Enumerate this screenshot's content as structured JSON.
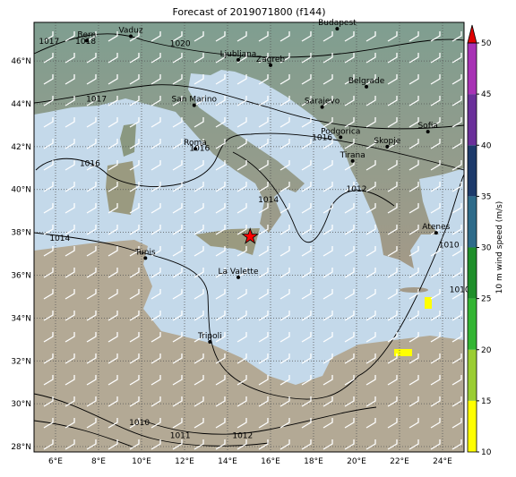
{
  "title": "Forecast of 2019071800 (f144)",
  "map": {
    "lonlim": [
      5,
      25
    ],
    "latlim": [
      27.75,
      47.8
    ],
    "xticks": [
      {
        "value": 6,
        "label": "6°E"
      },
      {
        "value": 8,
        "label": "8°E"
      },
      {
        "value": 10,
        "label": "10°E"
      },
      {
        "value": 12,
        "label": "12°E"
      },
      {
        "value": 14,
        "label": "14°E"
      },
      {
        "value": 16,
        "label": "16°E"
      },
      {
        "value": 18,
        "label": "18°E"
      },
      {
        "value": 20,
        "label": "20°E"
      },
      {
        "value": 22,
        "label": "22°E"
      },
      {
        "value": 24,
        "label": "24°E"
      }
    ],
    "yticks": [
      {
        "value": 28,
        "label": "28°N"
      },
      {
        "value": 30,
        "label": "30°N"
      },
      {
        "value": 32,
        "label": "32°N"
      },
      {
        "value": 34,
        "label": "34°N"
      },
      {
        "value": 36,
        "label": "36°N"
      },
      {
        "value": 38,
        "label": "38°N"
      },
      {
        "value": 40,
        "label": "40°N"
      },
      {
        "value": 42,
        "label": "42°N"
      },
      {
        "value": 44,
        "label": "44°N"
      },
      {
        "value": 46,
        "label": "46°N"
      }
    ],
    "grid": true,
    "cities": [
      {
        "name": "Bern",
        "lon": 7.45,
        "lat": 46.95
      },
      {
        "name": "Vaduz",
        "lon": 9.5,
        "lat": 47.15
      },
      {
        "name": "Budapest",
        "lon": 19.1,
        "lat": 47.5
      },
      {
        "name": "Ljubljana",
        "lon": 14.5,
        "lat": 46.05
      },
      {
        "name": "Zagreb",
        "lon": 16.0,
        "lat": 45.8
      },
      {
        "name": "Belgrade",
        "lon": 20.46,
        "lat": 44.8
      },
      {
        "name": "San Marino",
        "lon": 12.45,
        "lat": 43.93
      },
      {
        "name": "Sarajevo",
        "lon": 18.4,
        "lat": 43.85
      },
      {
        "name": "Roma",
        "lon": 12.5,
        "lat": 41.9
      },
      {
        "name": "Podgorica",
        "lon": 19.26,
        "lat": 42.44
      },
      {
        "name": "Skopje",
        "lon": 21.43,
        "lat": 42.0
      },
      {
        "name": "Sofia",
        "lon": 23.32,
        "lat": 42.7
      },
      {
        "name": "Tirana",
        "lon": 19.82,
        "lat": 41.33
      },
      {
        "name": "Atenes",
        "lon": 23.7,
        "lat": 37.98
      },
      {
        "name": "Tunis",
        "lon": 10.18,
        "lat": 36.8
      },
      {
        "name": "La Valette",
        "lon": 14.5,
        "lat": 35.9
      },
      {
        "name": "Tripoli",
        "lon": 13.18,
        "lat": 32.89
      }
    ],
    "marker": {
      "lon": 15.05,
      "lat": 37.8,
      "color": "#ff0000"
    },
    "isobar_labels": [
      {
        "text": "1017",
        "lon": 5.7,
        "lat": 46.8
      },
      {
        "text": "1018",
        "lon": 7.4,
        "lat": 46.8
      },
      {
        "text": "1020",
        "lon": 11.8,
        "lat": 46.7
      },
      {
        "text": "1017",
        "lon": 7.9,
        "lat": 44.1
      },
      {
        "text": "1016",
        "lon": 7.6,
        "lat": 41.1
      },
      {
        "text": "1016",
        "lon": 12.7,
        "lat": 41.8
      },
      {
        "text": "1016",
        "lon": 18.4,
        "lat": 42.3
      },
      {
        "text": "1012",
        "lon": 20.0,
        "lat": 39.9
      },
      {
        "text": "1014",
        "lon": 15.9,
        "lat": 39.4
      },
      {
        "text": "1014",
        "lon": 6.2,
        "lat": 37.6
      },
      {
        "text": "1010",
        "lon": 24.3,
        "lat": 37.3
      },
      {
        "text": "1010",
        "lon": 24.8,
        "lat": 35.2
      },
      {
        "text": "1010",
        "lon": 9.9,
        "lat": 29.0
      },
      {
        "text": "1011",
        "lon": 11.8,
        "lat": 28.4
      },
      {
        "text": "1012",
        "lon": 14.7,
        "lat": 28.4
      }
    ]
  },
  "colorbar": {
    "label": "10 m wind speed (m/s)",
    "lim": [
      10,
      50
    ],
    "ticks": [
      10,
      15,
      20,
      25,
      30,
      35,
      40,
      45,
      50
    ],
    "colors": [
      "#ffff00",
      "#9acd32",
      "#33b533",
      "#1f8f2a",
      "#2e6b8a",
      "#1d3a6b",
      "#6a2f9a",
      "#a832b5"
    ],
    "extend_color": "#e00000"
  }
}
